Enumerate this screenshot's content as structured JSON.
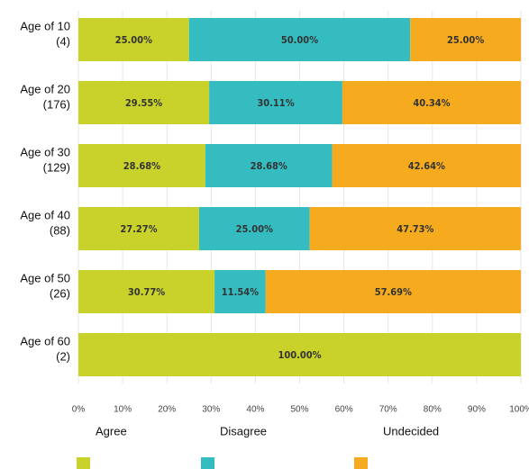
{
  "chart_data": {
    "type": "stacked_barh",
    "categories": [
      [
        "Age of 10",
        "(4)"
      ],
      [
        "Age of 20",
        "(176)"
      ],
      [
        "Age of 30",
        "(129)"
      ],
      [
        "Age of 40",
        "(88)"
      ],
      [
        "Age of 50",
        "(26)"
      ],
      [
        "Age of 60",
        "(2)"
      ]
    ],
    "series": [
      {
        "name": "Agree",
        "color": "#c9d22a",
        "values": [
          25,
          29.55,
          28.68,
          27.27,
          30.77,
          100
        ],
        "value_labels": [
          "25.00%",
          "29.55%",
          "28.68%",
          "27.27%",
          "30.77%",
          "100.00%"
        ]
      },
      {
        "name": "Disagree",
        "color": "#35bcc0",
        "values": [
          50,
          30.11,
          28.68,
          25,
          11.54,
          0
        ],
        "value_labels": [
          "50.00%",
          "30.11%",
          "28.68%",
          "25.00%",
          "11.54%",
          null
        ]
      },
      {
        "name": "Undecided",
        "color": "#f5ab1d",
        "values": [
          25,
          40.34,
          42.64,
          47.73,
          57.69,
          0
        ],
        "value_labels": [
          "25.00%",
          "40.34%",
          "42.64%",
          "47.73%",
          "57.69%",
          null
        ]
      }
    ],
    "xlim": [
      0,
      100
    ],
    "xticks": [
      {
        "value": 0,
        "label": "0%"
      },
      {
        "value": 10,
        "label": "10%"
      },
      {
        "value": 20,
        "label": "20%"
      },
      {
        "value": 30,
        "label": "30%"
      },
      {
        "value": 40,
        "label": "40%"
      },
      {
        "value": 50,
        "label": "50%"
      },
      {
        "value": 60,
        "label": "60%"
      },
      {
        "value": 70,
        "label": "70%"
      },
      {
        "value": 80,
        "label": "80%"
      },
      {
        "value": 90,
        "label": "90%"
      },
      {
        "value": 100,
        "label": "100%"
      }
    ],
    "grid": true
  }
}
